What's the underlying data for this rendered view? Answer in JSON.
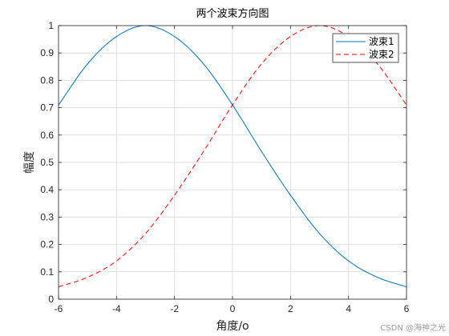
{
  "chart_data": {
    "type": "line",
    "title": "两个波束方向图",
    "xlabel": "角度/o",
    "ylabel": "幅度",
    "xlim": [
      -6,
      6
    ],
    "ylim": [
      0,
      1
    ],
    "xticks": [
      "-6",
      "-4",
      "-2",
      "0",
      "2",
      "4",
      "6"
    ],
    "yticks": [
      "0",
      "0.1",
      "0.2",
      "0.3",
      "0.4",
      "0.5",
      "0.6",
      "0.7",
      "0.8",
      "0.9",
      "1"
    ],
    "grid": true,
    "legend": "top-right",
    "series": [
      {
        "name": "波束1",
        "color": "#0072BD",
        "style": "solid",
        "x": [
          -6,
          -5,
          -4,
          -3,
          -2,
          -1,
          0,
          1,
          2,
          3,
          4,
          5,
          6
        ],
        "y": [
          0.71,
          0.86,
          0.96,
          1.0,
          0.96,
          0.86,
          0.71,
          0.54,
          0.38,
          0.24,
          0.14,
          0.08,
          0.045
        ]
      },
      {
        "name": "波束2",
        "color": "#FF0000",
        "style": "dashed",
        "x": [
          -6,
          -5,
          -4,
          -3,
          -2,
          -1,
          0,
          1,
          2,
          3,
          4,
          5,
          6
        ],
        "y": [
          0.045,
          0.08,
          0.14,
          0.24,
          0.38,
          0.54,
          0.71,
          0.86,
          0.96,
          1.0,
          0.96,
          0.86,
          0.71
        ]
      }
    ]
  },
  "watermark": "CSDN @海神之光"
}
